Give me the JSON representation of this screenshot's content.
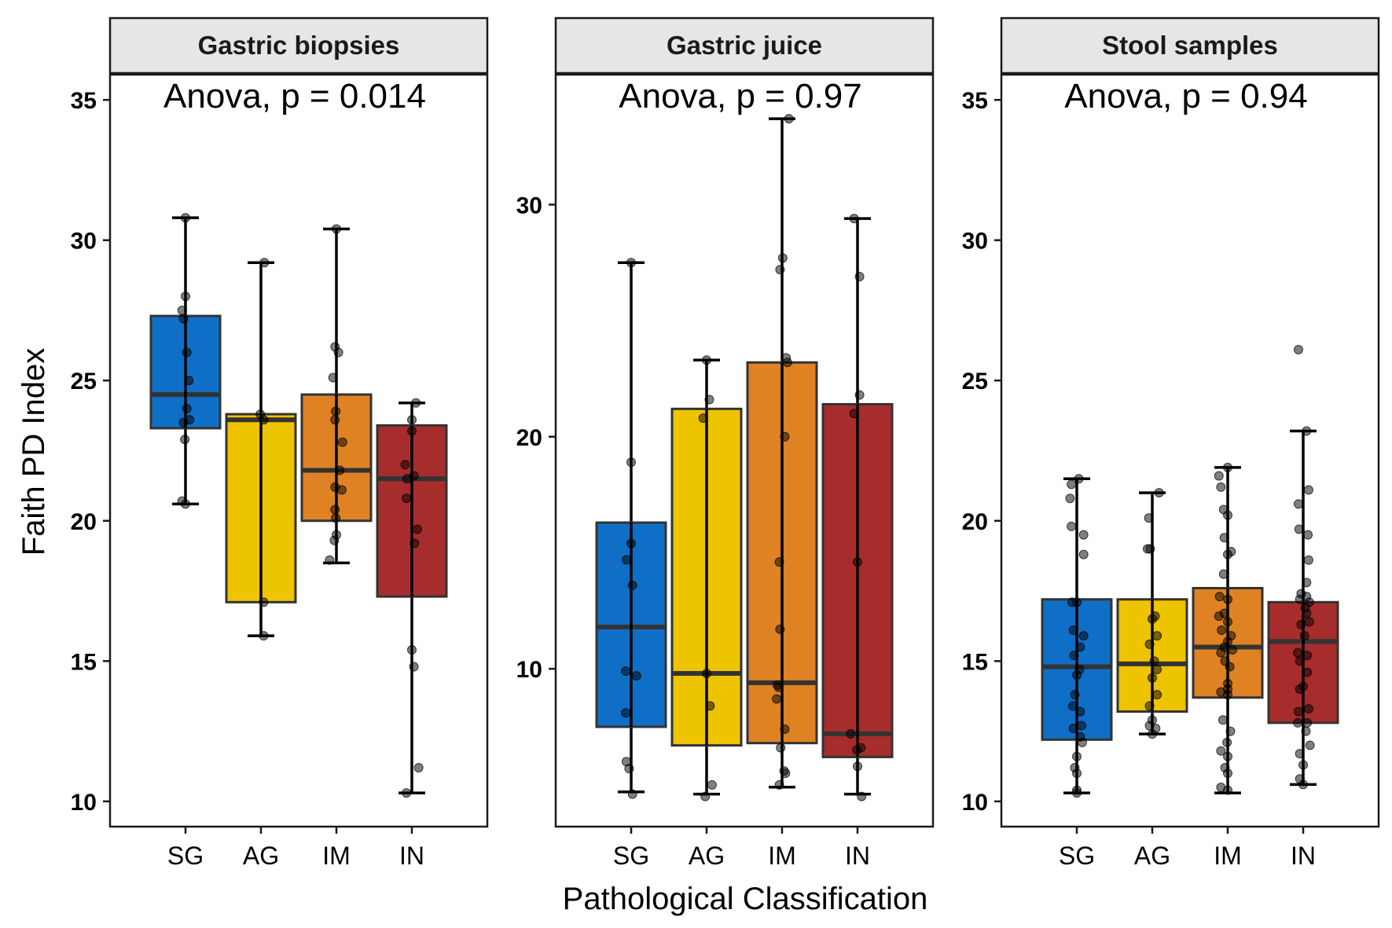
{
  "chart_data": {
    "type": "box",
    "xlabel": "Pathological Classification",
    "ylabel": "Faith PD Index",
    "categories": [
      "SG",
      "AG",
      "IM",
      "IN"
    ],
    "colors": {
      "SG": "#0f6fc6",
      "AG": "#eec300",
      "IM": "#df8224",
      "IN": "#a72d2d"
    },
    "panels": [
      {
        "title": "Gastric biopsies",
        "annotation": "Anova, p = 0.014",
        "ylim": [
          9.1,
          35.9
        ],
        "yticks": [
          "10",
          "15",
          "20",
          "25",
          "30",
          "35"
        ],
        "boxes": [
          {
            "category": "SG",
            "min": 20.6,
            "q1": 23.3,
            "median": 24.5,
            "q3": 27.3,
            "max": 30.8,
            "points": [
              [
                0.0,
                30.8
              ],
              [
                -0.05,
                27.5
              ],
              [
                0.0,
                28.0
              ],
              [
                -0.03,
                27.2
              ],
              [
                0.02,
                26.0
              ],
              [
                0.05,
                25.0
              ],
              [
                0.02,
                24.0
              ],
              [
                0.06,
                23.6
              ],
              [
                -0.03,
                23.5
              ],
              [
                -0.01,
                22.9
              ],
              [
                -0.05,
                20.7
              ],
              [
                0.0,
                20.6
              ]
            ]
          },
          {
            "category": "AG",
            "min": 15.9,
            "q1": 17.1,
            "median": 23.6,
            "q3": 23.8,
            "max": 29.2,
            "points": [
              [
                0.05,
                29.2
              ],
              [
                -0.01,
                23.8
              ],
              [
                0.04,
                23.6
              ],
              [
                0.04,
                17.1
              ],
              [
                0.04,
                15.9
              ]
            ]
          },
          {
            "category": "IM",
            "min": 18.5,
            "q1": 20.0,
            "median": 21.8,
            "q3": 24.5,
            "max": 30.4,
            "points": [
              [
                0.0,
                30.4
              ],
              [
                -0.02,
                26.2
              ],
              [
                0.03,
                26.0
              ],
              [
                -0.05,
                25.1
              ],
              [
                -0.01,
                23.9
              ],
              [
                -0.02,
                23.6
              ],
              [
                0.09,
                22.8
              ],
              [
                0.05,
                21.8
              ],
              [
                -0.02,
                21.2
              ],
              [
                0.08,
                21.1
              ],
              [
                -0.02,
                20.4
              ],
              [
                -0.01,
                20.1
              ],
              [
                0.0,
                19.5
              ],
              [
                -0.03,
                19.3
              ],
              [
                -0.1,
                18.6
              ]
            ]
          },
          {
            "category": "IN",
            "min": 10.3,
            "q1": 17.3,
            "median": 21.5,
            "q3": 23.4,
            "max": 24.2,
            "points": [
              [
                0.06,
                24.2
              ],
              [
                0.0,
                23.6
              ],
              [
                0.0,
                23.2
              ],
              [
                -0.1,
                22.0
              ],
              [
                0.03,
                21.6
              ],
              [
                -0.07,
                21.5
              ],
              [
                -0.08,
                20.8
              ],
              [
                0.08,
                19.7
              ],
              [
                0.04,
                19.2
              ],
              [
                0.0,
                15.4
              ],
              [
                0.03,
                14.8
              ],
              [
                0.1,
                11.2
              ],
              [
                -0.08,
                10.3
              ]
            ]
          }
        ]
      },
      {
        "title": "Gastric juice",
        "annotation": "Anova, p = 0.97",
        "ylim": [
          3.2,
          35.6
        ],
        "yticks": [
          "10",
          "20",
          "30"
        ],
        "boxes": [
          {
            "category": "SG",
            "min": 4.7,
            "q1": 7.5,
            "median": 11.8,
            "q3": 16.3,
            "max": 27.5,
            "points": [
              [
                0.0,
                27.5
              ],
              [
                0.0,
                18.9
              ],
              [
                0.0,
                15.4
              ],
              [
                -0.07,
                14.7
              ],
              [
                0.02,
                13.6
              ],
              [
                -0.08,
                9.9
              ],
              [
                0.08,
                9.7
              ],
              [
                -0.08,
                8.1
              ],
              [
                -0.07,
                6.0
              ],
              [
                -0.03,
                5.7
              ],
              [
                0.02,
                4.6
              ]
            ]
          },
          {
            "category": "AG",
            "min": 4.6,
            "q1": 6.7,
            "median": 9.8,
            "q3": 21.2,
            "max": 23.3,
            "points": [
              [
                0.0,
                23.3
              ],
              [
                0.04,
                21.6
              ],
              [
                -0.05,
                20.8
              ],
              [
                0.0,
                9.8
              ],
              [
                0.05,
                8.4
              ],
              [
                0.08,
                5.0
              ],
              [
                -0.02,
                4.5
              ]
            ]
          },
          {
            "category": "IM",
            "min": 4.9,
            "q1": 6.8,
            "median": 9.4,
            "q3": 23.2,
            "max": 33.7,
            "points": [
              [
                0.1,
                33.7
              ],
              [
                0.01,
                27.7
              ],
              [
                -0.03,
                27.2
              ],
              [
                0.06,
                23.4
              ],
              [
                0.08,
                23.2
              ],
              [
                0.04,
                20.0
              ],
              [
                -0.04,
                14.6
              ],
              [
                -0.03,
                11.7
              ],
              [
                -0.07,
                9.3
              ],
              [
                -0.05,
                9.2
              ],
              [
                -0.08,
                8.7
              ],
              [
                0.04,
                7.4
              ],
              [
                -0.02,
                6.6
              ],
              [
                0.03,
                5.6
              ],
              [
                0.05,
                5.5
              ],
              [
                -0.04,
                5.0
              ]
            ]
          },
          {
            "category": "IN",
            "min": 4.6,
            "q1": 6.2,
            "median": 7.2,
            "q3": 21.4,
            "max": 29.4,
            "points": [
              [
                -0.05,
                29.4
              ],
              [
                0.03,
                26.9
              ],
              [
                0.03,
                21.8
              ],
              [
                -0.05,
                21.0
              ],
              [
                0.0,
                14.6
              ],
              [
                -0.1,
                7.2
              ],
              [
                0.05,
                6.6
              ],
              [
                -0.01,
                6.5
              ],
              [
                0.0,
                5.8
              ],
              [
                0.06,
                4.5
              ]
            ]
          }
        ]
      },
      {
        "title": "Stool samples",
        "annotation": "Anova, p = 0.94",
        "ylim": [
          9.1,
          35.9
        ],
        "yticks": [
          "10",
          "15",
          "20",
          "25",
          "30",
          "35"
        ],
        "boxes": [
          {
            "category": "SG",
            "min": 10.3,
            "q1": 12.2,
            "median": 14.8,
            "q3": 17.2,
            "max": 21.5,
            "points": [
              [
                0.03,
                21.5
              ],
              [
                -0.08,
                21.3
              ],
              [
                -0.1,
                20.8
              ],
              [
                -0.08,
                19.8
              ],
              [
                0.1,
                19.5
              ],
              [
                0.1,
                18.8
              ],
              [
                -0.07,
                17.1
              ],
              [
                0.0,
                17.1
              ],
              [
                -0.05,
                16.1
              ],
              [
                0.1,
                15.9
              ],
              [
                0.05,
                15.5
              ],
              [
                -0.04,
                15.2
              ],
              [
                0.04,
                14.7
              ],
              [
                0.0,
                14.5
              ],
              [
                -0.03,
                13.8
              ],
              [
                -0.06,
                13.4
              ],
              [
                0.05,
                13.2
              ],
              [
                0.07,
                12.7
              ],
              [
                -0.05,
                12.6
              ],
              [
                0.05,
                12.3
              ],
              [
                0.08,
                12.1
              ],
              [
                0.0,
                11.6
              ],
              [
                -0.03,
                11.2
              ],
              [
                0.0,
                11.0
              ],
              [
                0.0,
                10.4
              ],
              [
                0.0,
                10.3
              ]
            ]
          },
          {
            "category": "AG",
            "min": 12.4,
            "q1": 13.2,
            "median": 14.9,
            "q3": 17.2,
            "max": 21.0,
            "points": [
              [
                -0.05,
                20.1
              ],
              [
                0.1,
                21.0
              ],
              [
                -0.07,
                19.0
              ],
              [
                -0.03,
                19.0
              ],
              [
                0.04,
                16.6
              ],
              [
                0.0,
                16.5
              ],
              [
                0.07,
                15.9
              ],
              [
                -0.04,
                15.6
              ],
              [
                0.03,
                15.0
              ],
              [
                0.07,
                14.7
              ],
              [
                0.0,
                14.4
              ],
              [
                0.07,
                13.8
              ],
              [
                -0.04,
                13.4
              ],
              [
                0.0,
                12.9
              ],
              [
                -0.04,
                12.7
              ],
              [
                0.05,
                12.6
              ],
              [
                0.0,
                12.4
              ]
            ]
          },
          {
            "category": "IM",
            "min": 10.3,
            "q1": 13.7,
            "median": 15.5,
            "q3": 17.6,
            "max": 21.9,
            "points": [
              [
                0.0,
                21.9
              ],
              [
                -0.13,
                21.6
              ],
              [
                -0.1,
                21.2
              ],
              [
                -0.06,
                20.4
              ],
              [
                0.0,
                20.2
              ],
              [
                -0.05,
                19.4
              ],
              [
                0.05,
                18.9
              ],
              [
                0.0,
                18.8
              ],
              [
                -0.06,
                18.1
              ],
              [
                0.0,
                17.2
              ],
              [
                -0.12,
                17.3
              ],
              [
                -0.05,
                16.7
              ],
              [
                -0.13,
                16.6
              ],
              [
                0.0,
                16.4
              ],
              [
                -0.09,
                16.1
              ],
              [
                0.05,
                15.9
              ],
              [
                0.0,
                15.7
              ],
              [
                -0.05,
                15.5
              ],
              [
                0.07,
                15.4
              ],
              [
                -0.1,
                15.3
              ],
              [
                -0.04,
                15.0
              ],
              [
                0.03,
                14.8
              ],
              [
                0.0,
                14.2
              ],
              [
                0.0,
                14.0
              ],
              [
                -0.1,
                13.9
              ],
              [
                0.0,
                13.8
              ],
              [
                -0.07,
                12.9
              ],
              [
                0.04,
                12.5
              ],
              [
                -0.01,
                12.1
              ],
              [
                -0.1,
                11.8
              ],
              [
                0.0,
                11.6
              ],
              [
                -0.04,
                11.2
              ],
              [
                0.0,
                11.0
              ],
              [
                -0.1,
                10.5
              ],
              [
                0.0,
                10.4
              ]
            ]
          },
          {
            "category": "IN",
            "min": 10.6,
            "q1": 12.8,
            "median": 15.7,
            "q3": 17.1,
            "max": 23.2,
            "points": [
              [
                -0.07,
                26.1
              ],
              [
                0.05,
                23.2
              ],
              [
                0.08,
                21.1
              ],
              [
                -0.07,
                20.6
              ],
              [
                -0.06,
                19.7
              ],
              [
                0.07,
                19.5
              ],
              [
                0.08,
                18.6
              ],
              [
                0.05,
                17.8
              ],
              [
                -0.03,
                17.4
              ],
              [
                0.05,
                17.3
              ],
              [
                0.09,
                17.1
              ],
              [
                -0.05,
                17.2
              ],
              [
                0.03,
                16.9
              ],
              [
                0.05,
                16.7
              ],
              [
                0.09,
                16.4
              ],
              [
                -0.03,
                16.3
              ],
              [
                0.02,
                15.9
              ],
              [
                -0.08,
                15.3
              ],
              [
                0.06,
                15.2
              ],
              [
                -0.05,
                15.0
              ],
              [
                0.06,
                14.6
              ],
              [
                0.0,
                14.1
              ],
              [
                -0.05,
                14.0
              ],
              [
                -0.07,
                13.2
              ],
              [
                0.08,
                13.3
              ],
              [
                0.06,
                12.8
              ],
              [
                -0.08,
                12.8
              ],
              [
                0.04,
                12.5
              ],
              [
                0.1,
                12.0
              ],
              [
                -0.05,
                11.7
              ],
              [
                0.0,
                11.3
              ],
              [
                -0.05,
                10.8
              ],
              [
                0.0,
                10.6
              ]
            ]
          }
        ]
      }
    ]
  }
}
